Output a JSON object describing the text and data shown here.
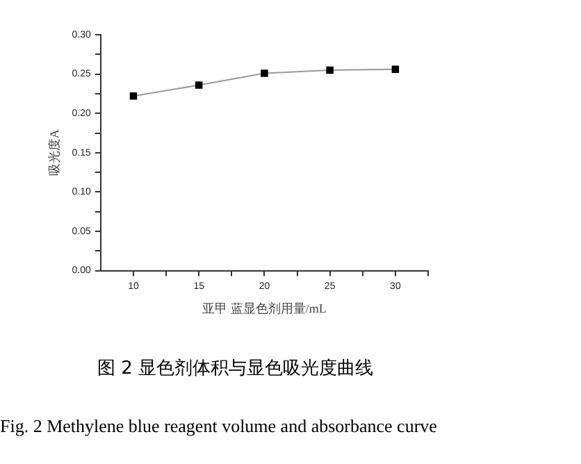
{
  "chart_data": {
    "type": "line",
    "title": "图 2 显色剂体积与显色吸光度曲线",
    "xlabel": "亚甲 蓝显色剂用量/mL",
    "ylabel": "吸光度A",
    "x": [
      10,
      15,
      20,
      25,
      30
    ],
    "series": [
      {
        "color": "#000000",
        "values": [
          0.222,
          0.236,
          0.251,
          0.255,
          0.256
        ]
      }
    ],
    "xlim": [
      7.5,
      32.5
    ],
    "xticks": [
      10,
      {
        "value": 12.5,
        "label": null
      },
      15,
      {
        "value": 17.5,
        "label": null
      },
      20,
      {
        "value": 22.5,
        "label": null
      },
      25,
      {
        "value": 27.5,
        "label": null
      },
      30,
      {
        "value": 32.5,
        "label": null
      }
    ],
    "ylim": [
      0,
      0.3
    ],
    "yticks": [
      {
        "value": 0,
        "label": "0.00"
      },
      {
        "value": 0.025,
        "label": null
      },
      {
        "value": 0.05,
        "label": "0.05"
      },
      {
        "value": 0.075,
        "label": null
      },
      {
        "value": 0.1,
        "label": "0.10"
      },
      {
        "value": 0.125,
        "label": null
      },
      {
        "value": 0.15,
        "label": "0.15"
      },
      {
        "value": 0.175,
        "label": null
      },
      {
        "value": 0.2,
        "label": "0.20"
      },
      {
        "value": 0.225,
        "label": null
      },
      {
        "value": 0.25,
        "label": "0.25"
      },
      {
        "value": 0.275,
        "label": null
      },
      {
        "value": 0.3,
        "label": "0.30"
      }
    ],
    "grid": false,
    "legend": false,
    "marker": "square",
    "line_style": "solid",
    "annotations": [
      "Fig. 2 Methylene blue reagent volume and absorbance curve"
    ]
  }
}
